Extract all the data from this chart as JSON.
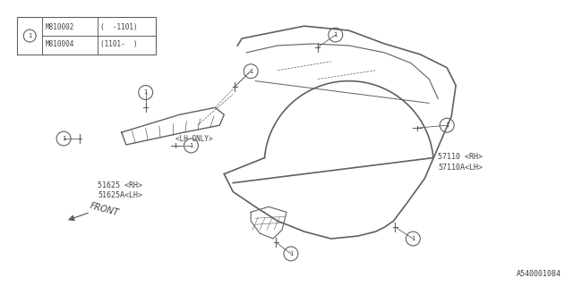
{
  "bg_color": "#ffffff",
  "line_color": "#606060",
  "text_color": "#404040",
  "part_number_bottom": "A540001084",
  "legend_row1_part": "M810002",
  "legend_row1_range": "(  -1101)",
  "legend_row2_part": "M810004",
  "legend_row2_range": "(1101-  )",
  "label_57110_rh": "57110 <RH>",
  "label_57110_lh": "57110A<LH>",
  "label_51625_rh": "51625 <RH>",
  "label_51625_lh": "51625A<LH>",
  "label_lh_only": "<LH ONLY>",
  "label_front": "FRONT"
}
